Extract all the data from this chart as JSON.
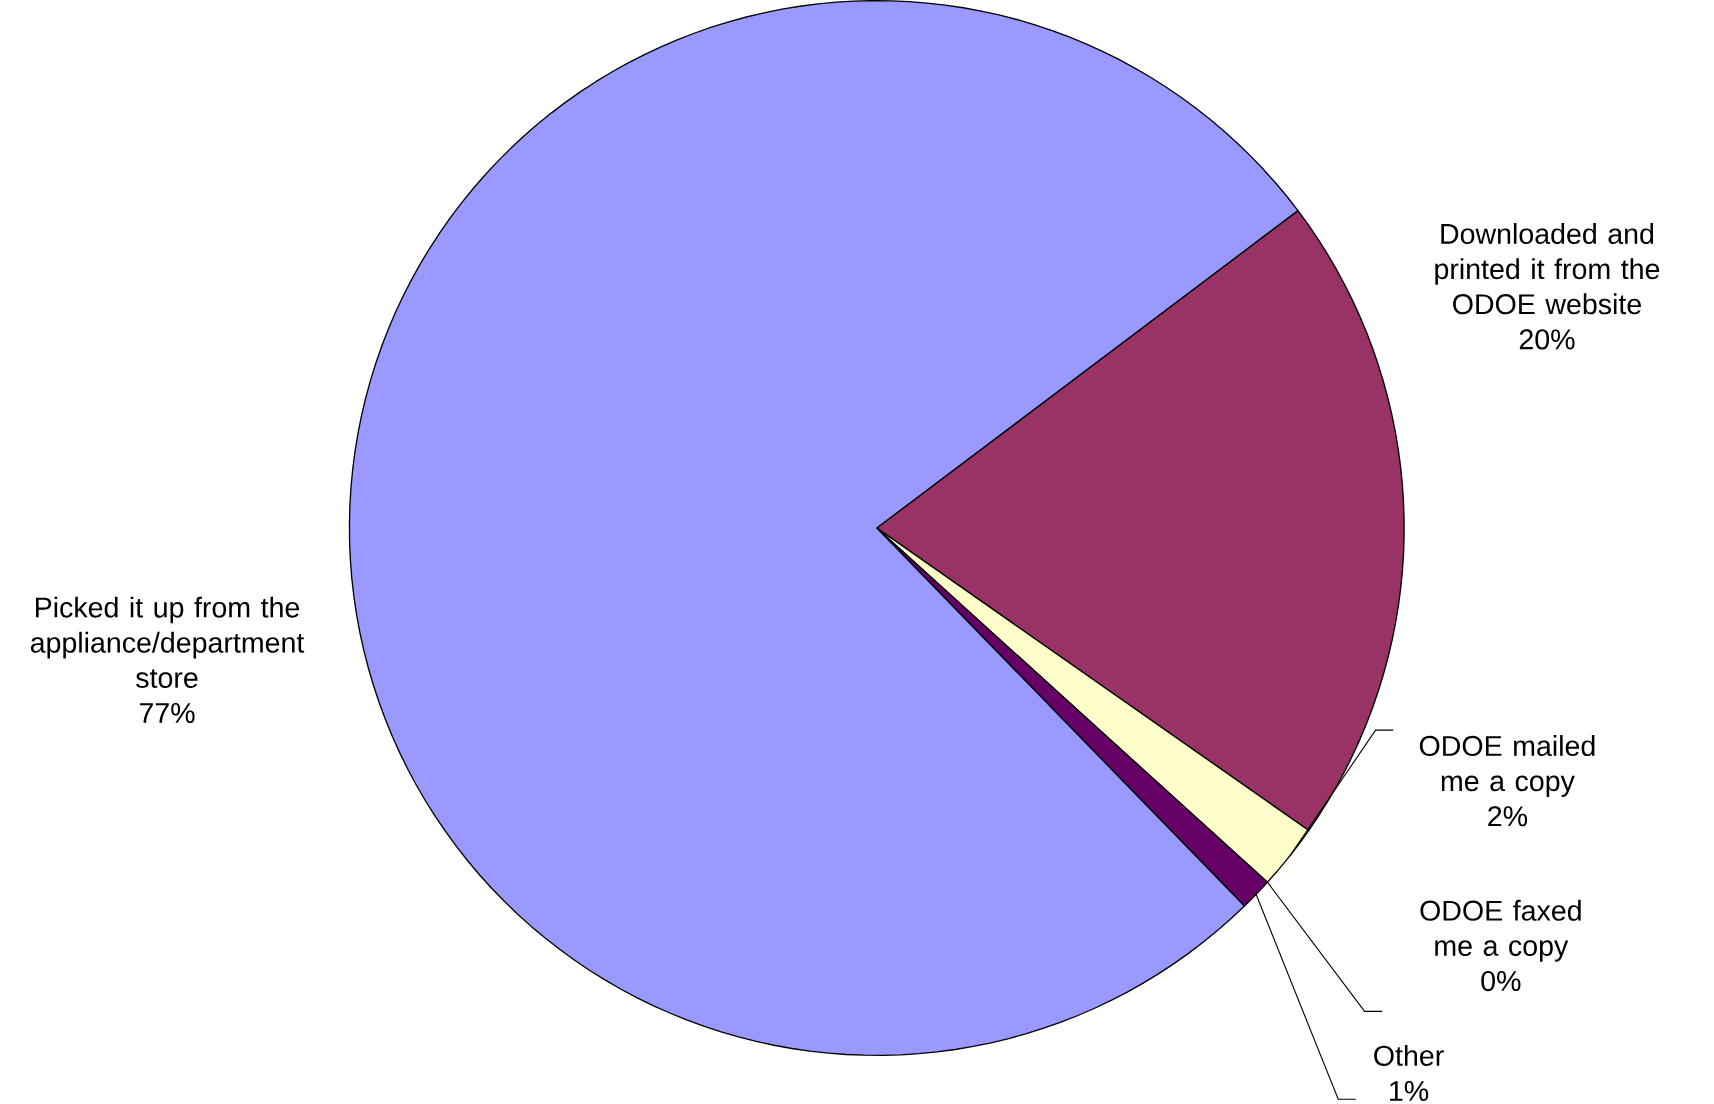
{
  "chart_data": {
    "type": "pie",
    "categories": [
      "Downloaded and printed it from the ODOE website",
      "ODOE mailed me a copy",
      "ODOE faxed me a copy",
      "Other",
      "Picked it up from the appliance/department store"
    ],
    "values": [
      20,
      2,
      0,
      1,
      77
    ],
    "value_labels": [
      "20%",
      "2%",
      "0%",
      "1%",
      "77%"
    ],
    "colors": [
      "#993366",
      "#ffffcc",
      "#ccffff",
      "#660066",
      "#9999ff"
    ]
  }
}
